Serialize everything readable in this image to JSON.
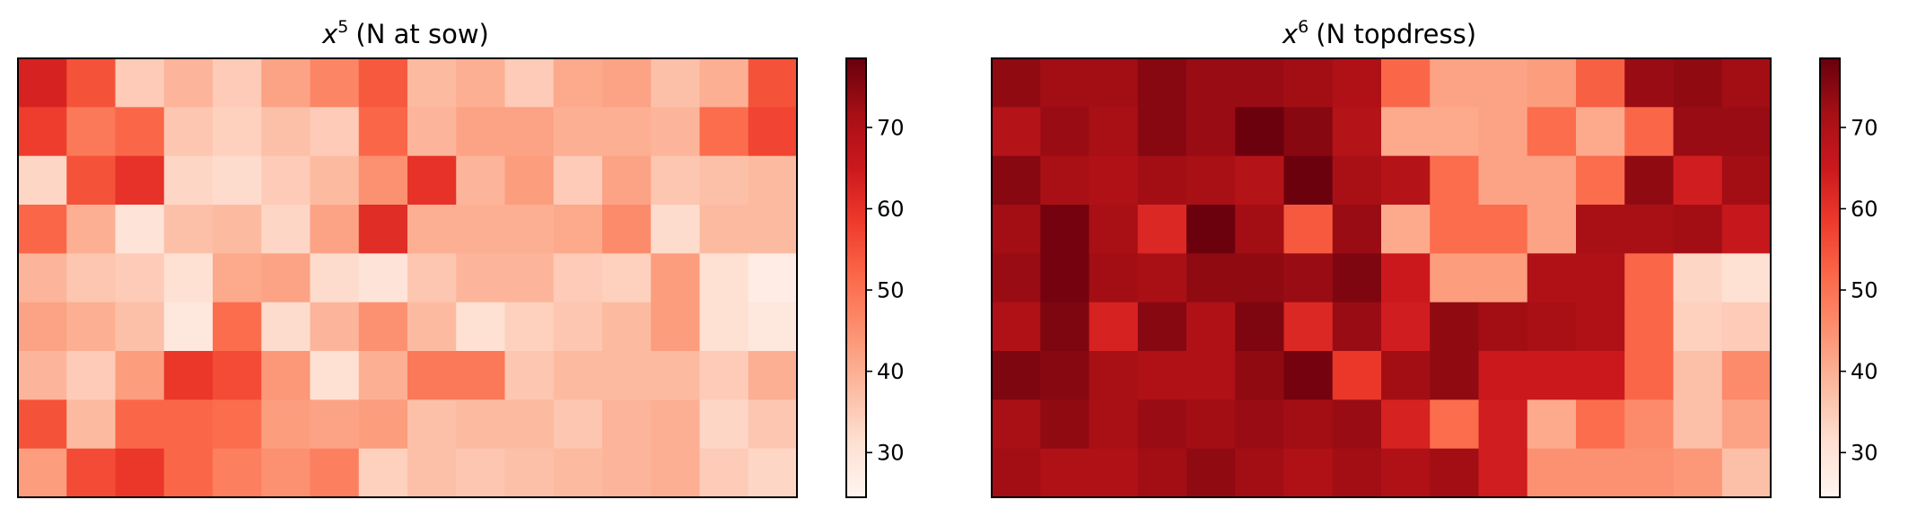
{
  "chart_data": [
    {
      "type": "heatmap",
      "title_symbol": "x",
      "title_exponent": "5",
      "title_suffix": "(N at sow)",
      "colormap": "Reds",
      "colorbar": {
        "ticks": [
          30,
          40,
          50,
          60,
          70
        ],
        "range": [
          24.5,
          78.5
        ]
      },
      "grid": false,
      "values": [
        [
          63,
          55,
          35,
          39,
          35,
          42,
          47,
          54,
          38,
          40,
          35,
          41,
          42,
          37,
          40,
          55
        ],
        [
          58,
          49,
          52,
          36,
          34,
          37,
          35,
          52,
          39,
          42,
          42,
          40,
          40,
          39,
          51,
          57
        ],
        [
          33,
          55,
          60,
          33,
          32,
          35,
          38,
          45,
          60,
          39,
          43,
          35,
          42,
          36,
          37,
          38
        ],
        [
          52,
          40,
          30,
          37,
          38,
          33,
          42,
          61,
          40,
          40,
          40,
          41,
          46,
          32,
          38,
          38
        ],
        [
          39,
          36,
          35,
          31,
          41,
          42,
          32,
          30,
          36,
          39,
          39,
          35,
          34,
          43,
          31,
          27
        ],
        [
          42,
          40,
          37,
          29,
          51,
          32,
          39,
          45,
          38,
          31,
          34,
          36,
          38,
          43,
          31,
          29
        ],
        [
          39,
          35,
          43,
          59,
          56,
          44,
          31,
          40,
          49,
          49,
          36,
          38,
          38,
          38,
          35,
          40
        ],
        [
          55,
          38,
          52,
          52,
          51,
          43,
          42,
          43,
          37,
          38,
          38,
          36,
          39,
          40,
          33,
          36
        ],
        [
          43,
          56,
          59,
          52,
          48,
          45,
          48,
          34,
          37,
          36,
          37,
          38,
          39,
          40,
          35,
          33
        ]
      ]
    },
    {
      "type": "heatmap",
      "title_symbol": "x",
      "title_exponent": "6",
      "title_suffix": "(N topdress)",
      "colormap": "Reds",
      "colorbar": {
        "ticks": [
          30,
          40,
          50,
          60,
          70
        ],
        "range": [
          24.5,
          78.5
        ]
      },
      "grid": false,
      "values": [
        [
          74,
          72,
          72,
          75,
          73,
          73,
          72,
          70,
          52,
          42,
          42,
          43,
          53,
          73,
          74,
          72
        ],
        [
          69,
          73,
          71,
          75,
          73,
          78,
          75,
          69,
          41,
          41,
          42,
          51,
          41,
          52,
          73,
          73
        ],
        [
          75,
          71,
          70,
          72,
          71,
          69,
          78,
          71,
          69,
          51,
          42,
          42,
          51,
          74,
          64,
          72
        ],
        [
          72,
          77,
          71,
          62,
          78,
          72,
          54,
          73,
          41,
          51,
          51,
          42,
          71,
          71,
          72,
          66
        ],
        [
          73,
          77,
          72,
          71,
          74,
          74,
          73,
          76,
          65,
          43,
          43,
          70,
          70,
          52,
          33,
          31
        ],
        [
          70,
          76,
          63,
          75,
          70,
          76,
          62,
          73,
          64,
          74,
          72,
          71,
          70,
          52,
          34,
          35
        ],
        [
          76,
          75,
          71,
          70,
          70,
          74,
          77,
          59,
          72,
          74,
          65,
          65,
          65,
          52,
          37,
          46
        ],
        [
          71,
          74,
          71,
          73,
          72,
          73,
          72,
          73,
          63,
          51,
          64,
          41,
          51,
          46,
          37,
          42
        ],
        [
          72,
          70,
          70,
          72,
          74,
          72,
          70,
          72,
          70,
          72,
          64,
          45,
          45,
          45,
          44,
          37
        ]
      ]
    }
  ]
}
